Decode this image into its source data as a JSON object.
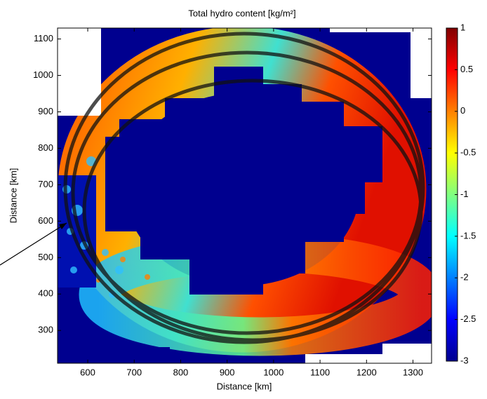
{
  "chart_data": {
    "type": "heatmap",
    "title": "Total hydro content [kg/m²]",
    "x_label": "Distance [km]",
    "y_label": "Distance [km]",
    "xlim": [
      535,
      1340
    ],
    "xticks": [
      600,
      700,
      800,
      900,
      1000,
      1100,
      1200,
      1300
    ],
    "ylim": [
      210,
      1130
    ],
    "yticks": [
      300,
      400,
      500,
      600,
      700,
      800,
      900,
      1000,
      1100
    ],
    "colorbar_lim": [
      -3,
      1
    ],
    "colorbar_ticks": [
      -3,
      -2.5,
      -2,
      -1.5,
      -1,
      -0.5,
      0,
      0.5,
      1
    ],
    "colormap": [
      "#00008f",
      "#0000ff",
      "#0080ff",
      "#00ffff",
      "#80ff80",
      "#ffff00",
      "#ff8000",
      "#ff0000",
      "#800000"
    ]
  }
}
